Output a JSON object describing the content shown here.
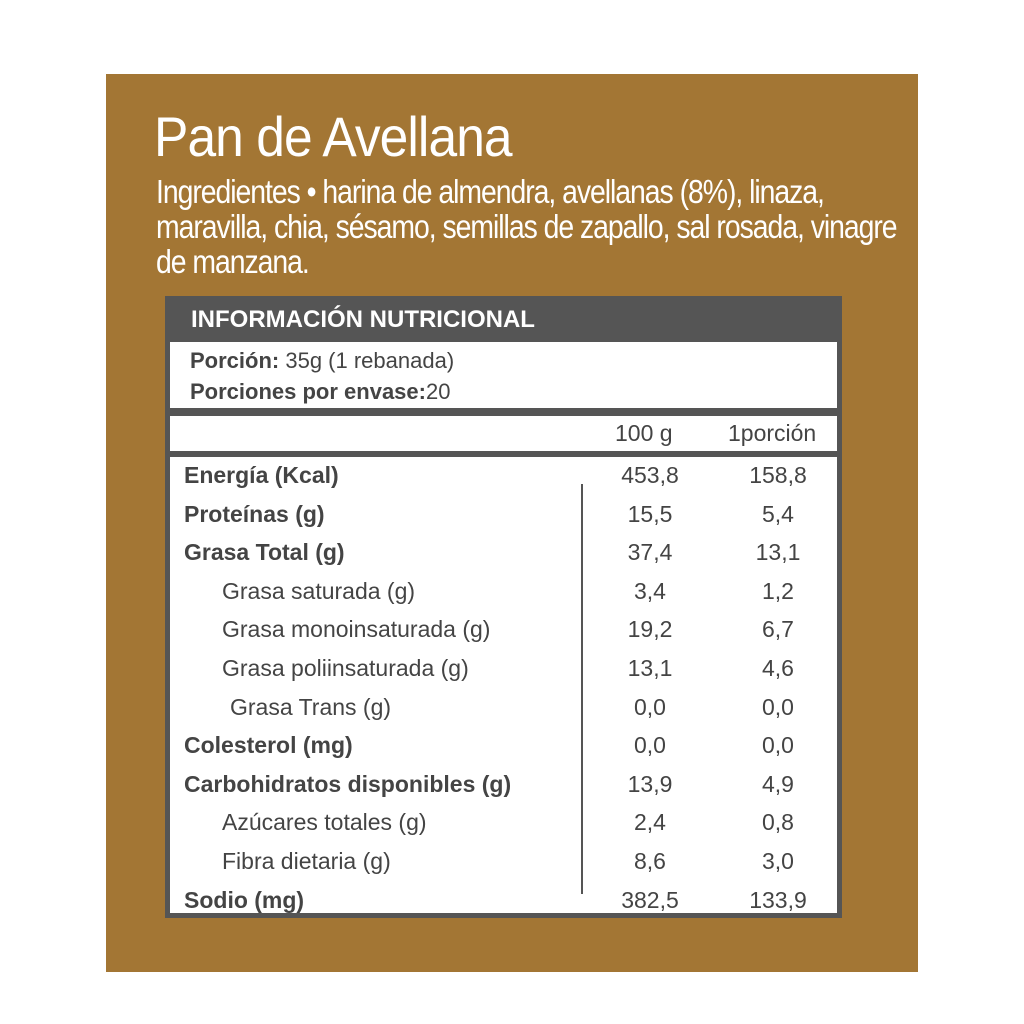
{
  "colors": {
    "background": "#A37634",
    "table_header": "#555555",
    "text": "#444444"
  },
  "title": "Pan de Avellana",
  "ingredients": "Ingredientes • harina de almendra, avellanas (8%), linaza, maravilla, chia, sésamo, semillas de zapallo, sal rosada, vinagre de manzana.",
  "table": {
    "header": "INFORMACIÓN NUTRICIONAL",
    "portion_label": "Porción:",
    "portion_value": " 35g (1 rebanada)",
    "servings_label": "Porciones por envase:",
    "servings_value": "20",
    "col1": "100 g",
    "col2": "1porción",
    "rows": [
      {
        "label": "Energía (Kcal)",
        "v100": "453,8",
        "vpor": "158,8",
        "style": "bold"
      },
      {
        "label": "Proteínas (g)",
        "v100": "15,5",
        "vpor": "5,4",
        "style": "bold"
      },
      {
        "label": "Grasa Total (g)",
        "v100": "37,4",
        "vpor": "13,1",
        "style": "bold"
      },
      {
        "label": "Grasa saturada (g)",
        "v100": "3,4",
        "vpor": "1,2",
        "style": "sub"
      },
      {
        "label": "Grasa monoinsaturada (g)",
        "v100": "19,2",
        "vpor": "6,7",
        "style": "sub"
      },
      {
        "label": "Grasa poliinsaturada (g)",
        "v100": "13,1",
        "vpor": "4,6",
        "style": "sub"
      },
      {
        "label": "Grasa Trans (g)",
        "v100": "0,0",
        "vpor": "0,0",
        "style": "sub2"
      },
      {
        "label": "Colesterol (mg)",
        "v100": "0,0",
        "vpor": "0,0",
        "style": "bold"
      },
      {
        "label": "Carbohidratos disponibles (g)",
        "v100": "13,9",
        "vpor": "4,9",
        "style": "bold"
      },
      {
        "label": "Azúcares totales (g)",
        "v100": "2,4",
        "vpor": "0,8",
        "style": "sub"
      },
      {
        "label": "Fibra dietaria (g)",
        "v100": "8,6",
        "vpor": "3,0",
        "style": "sub"
      },
      {
        "label": "Sodio (mg)",
        "v100": "382,5",
        "vpor": "133,9",
        "style": "bold"
      }
    ]
  }
}
